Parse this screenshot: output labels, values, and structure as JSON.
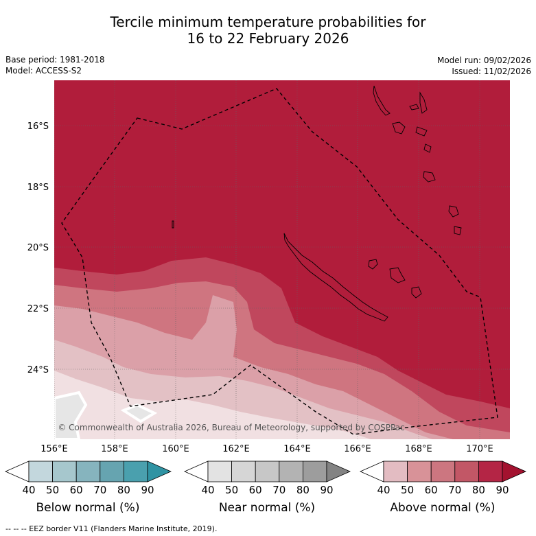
{
  "title": {
    "line1": "Tercile minimum temperature probabilities for",
    "line2": "16 to 22 February 2026"
  },
  "meta": {
    "base_period": "Base period: 1981-2018",
    "model": "Model: ACCESS-S2",
    "model_run": "Model run: 09/02/2026",
    "issued": "Issued: 11/02/2026"
  },
  "map": {
    "lat_labels": [
      "16°S",
      "18°S",
      "20°S",
      "22°S",
      "24°S"
    ],
    "lon_labels": [
      "156°E",
      "158°E",
      "160°E",
      "162°E",
      "164°E",
      "166°E",
      "168°E",
      "170°E"
    ],
    "copyright": "© Commonwealth of Australia 2026, Bureau of Meteorology, supported by COSPPac",
    "colors": {
      "above_90": "#b11d3b",
      "above_80": "#c0475d",
      "above_70": "#cf7580",
      "above_60": "#dba0a8",
      "above_50": "#e3c1c5",
      "near_40": "#e6e6e6"
    }
  },
  "legends": [
    {
      "name": "Below normal (%)",
      "ticks": [
        "40",
        "50",
        "60",
        "70",
        "80",
        "90"
      ],
      "colors": [
        "#ffffff",
        "#c3d7dd",
        "#a6c7cd",
        "#86b4be",
        "#66a4b0",
        "#4aa0ae",
        "#2f93a3"
      ]
    },
    {
      "name": "Near normal (%)",
      "ticks": [
        "40",
        "50",
        "60",
        "70",
        "80",
        "90"
      ],
      "colors": [
        "#ffffff",
        "#e3e3e3",
        "#d6d6d6",
        "#c7c7c7",
        "#b3b3b3",
        "#9d9d9d",
        "#838383"
      ]
    },
    {
      "name": "Above normal (%)",
      "ticks": [
        "40",
        "50",
        "60",
        "70",
        "80",
        "90"
      ],
      "colors": [
        "#ffffff",
        "#e3bcc2",
        "#d89298",
        "#cc7680",
        "#c25766",
        "#b42545",
        "#a3122f"
      ]
    }
  ],
  "footer": {
    "eez_note": "-- -- -- EEZ border V11 (Flanders Marine Institute, 2019)."
  }
}
